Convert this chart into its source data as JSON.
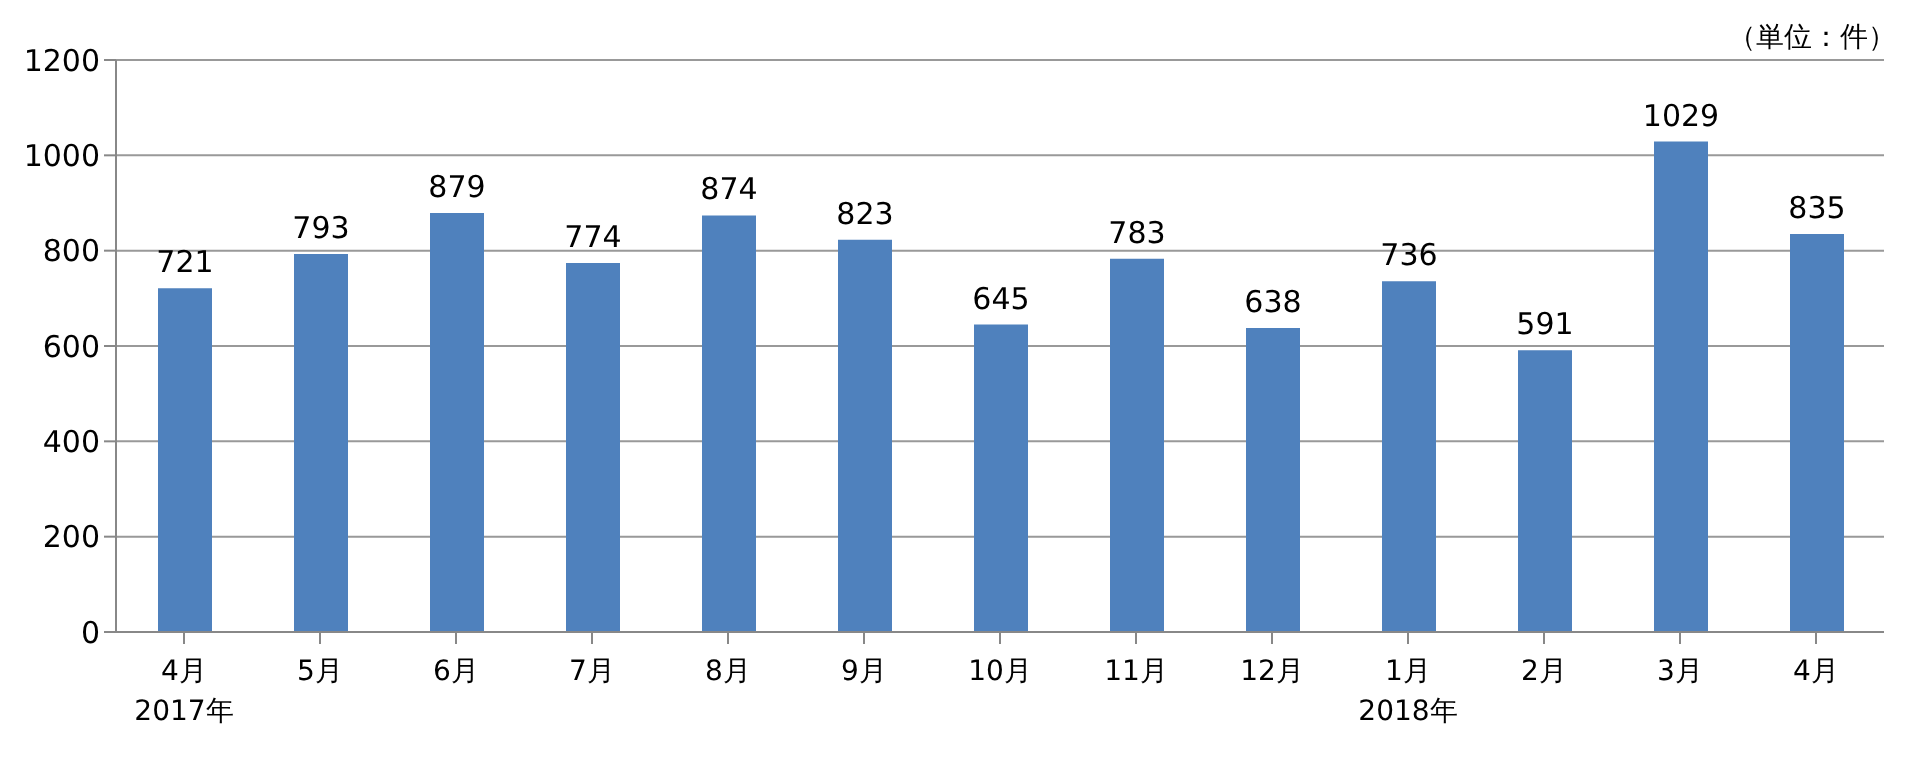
{
  "chart_data": {
    "type": "bar",
    "categories": [
      "4月\n2017年",
      "5月",
      "6月",
      "7月",
      "8月",
      "9月",
      "10月",
      "11月",
      "12月",
      "1月\n2018年",
      "2月",
      "3月",
      "4月"
    ],
    "values": [
      721,
      793,
      879,
      774,
      874,
      823,
      645,
      783,
      638,
      736,
      591,
      1029,
      835
    ],
    "color": "#4f81bd",
    "ylim": [
      0,
      1200
    ],
    "yticks": [
      0,
      200,
      400,
      600,
      800,
      1000,
      1200
    ],
    "grid": "y",
    "data_labels": true,
    "annotations": [
      "（単位：件）"
    ]
  }
}
